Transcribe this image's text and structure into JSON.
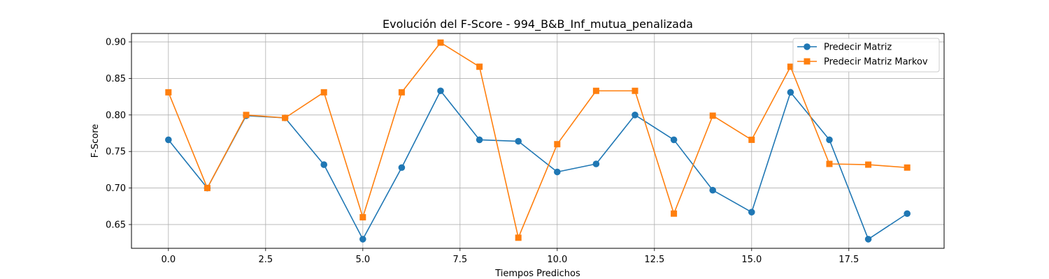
{
  "chart_data": {
    "type": "line",
    "title": "Evolución del F-Score - 994_B&B_Inf_mutua_penalizada",
    "xlabel": "Tiempos Predichos",
    "ylabel": "F-Score",
    "x": [
      0,
      1,
      2,
      3,
      4,
      5,
      6,
      7,
      8,
      9,
      10,
      11,
      12,
      13,
      14,
      15,
      16,
      17,
      18,
      19
    ],
    "xlim": [
      -0.95,
      19.95
    ],
    "ylim": [
      0.6175,
      0.9115
    ],
    "xticks": [
      0.0,
      2.5,
      5.0,
      7.5,
      10.0,
      12.5,
      15.0,
      17.5
    ],
    "xtick_labels": [
      "0.0",
      "2.5",
      "5.0",
      "7.5",
      "10.0",
      "12.5",
      "15.0",
      "17.5"
    ],
    "yticks": [
      0.65,
      0.7,
      0.75,
      0.8,
      0.85,
      0.9
    ],
    "ytick_labels": [
      "0.65",
      "0.70",
      "0.75",
      "0.80",
      "0.85",
      "0.90"
    ],
    "grid": true,
    "legend_position": "top-right",
    "series": [
      {
        "name": "Predecir Matriz",
        "color": "#1f77b4",
        "marker": "circle",
        "values": [
          0.766,
          0.7,
          0.799,
          0.796,
          0.732,
          0.63,
          0.728,
          0.833,
          0.766,
          0.764,
          0.722,
          0.733,
          0.8,
          0.766,
          0.697,
          0.667,
          0.831,
          0.766,
          0.63,
          0.665
        ]
      },
      {
        "name": "Predecir Matriz Markov",
        "color": "#ff7f0e",
        "marker": "square",
        "values": [
          0.831,
          0.7,
          0.8,
          0.796,
          0.831,
          0.66,
          0.831,
          0.899,
          0.866,
          0.632,
          0.76,
          0.833,
          0.833,
          0.665,
          0.799,
          0.766,
          0.866,
          0.733,
          0.732,
          0.728
        ]
      }
    ]
  }
}
